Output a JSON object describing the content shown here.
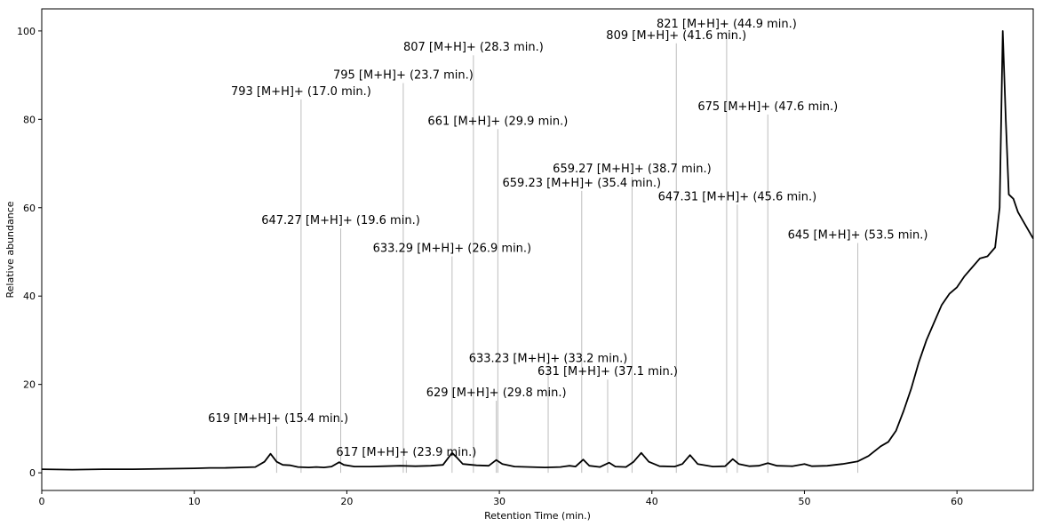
{
  "chart_data": {
    "type": "line",
    "title": "",
    "xlabel": "Retention Time (min.)",
    "ylabel": "Relative abundance",
    "xlim": [
      0,
      65
    ],
    "ylim": [
      -4,
      105
    ],
    "grid": false,
    "x_ticks": [
      0,
      10,
      20,
      30,
      40,
      50,
      60
    ],
    "y_ticks": [
      0,
      20,
      40,
      60,
      80,
      100
    ],
    "series": [
      {
        "color": "#000000",
        "points": [
          [
            0,
            0.8
          ],
          [
            2,
            0.7
          ],
          [
            4,
            0.8
          ],
          [
            6,
            0.8
          ],
          [
            8,
            0.9
          ],
          [
            10,
            1.0
          ],
          [
            11,
            1.1
          ],
          [
            12,
            1.1
          ],
          [
            13,
            1.2
          ],
          [
            14,
            1.3
          ],
          [
            14.6,
            2.5
          ],
          [
            15.0,
            4.3
          ],
          [
            15.4,
            2.5
          ],
          [
            15.8,
            1.8
          ],
          [
            16.3,
            1.7
          ],
          [
            16.8,
            1.3
          ],
          [
            17.5,
            1.2
          ],
          [
            18.0,
            1.3
          ],
          [
            18.5,
            1.2
          ],
          [
            19.0,
            1.4
          ],
          [
            19.5,
            2.4
          ],
          [
            19.8,
            1.8
          ],
          [
            20.5,
            1.4
          ],
          [
            21.5,
            1.4
          ],
          [
            22.5,
            1.5
          ],
          [
            23.5,
            1.6
          ],
          [
            24.5,
            1.5
          ],
          [
            25.5,
            1.6
          ],
          [
            26.3,
            1.8
          ],
          [
            26.9,
            4.5
          ],
          [
            27.2,
            3.5
          ],
          [
            27.6,
            2.0
          ],
          [
            28.5,
            1.7
          ],
          [
            29.3,
            1.6
          ],
          [
            29.8,
            2.9
          ],
          [
            30.2,
            2.0
          ],
          [
            31.0,
            1.4
          ],
          [
            32.0,
            1.3
          ],
          [
            33.0,
            1.2
          ],
          [
            34.0,
            1.3
          ],
          [
            34.6,
            1.6
          ],
          [
            35.0,
            1.4
          ],
          [
            35.5,
            3.0
          ],
          [
            35.9,
            1.6
          ],
          [
            36.6,
            1.3
          ],
          [
            37.2,
            2.3
          ],
          [
            37.6,
            1.4
          ],
          [
            38.3,
            1.3
          ],
          [
            38.8,
            2.5
          ],
          [
            39.3,
            4.5
          ],
          [
            39.8,
            2.5
          ],
          [
            40.5,
            1.5
          ],
          [
            41.5,
            1.4
          ],
          [
            42.0,
            2.0
          ],
          [
            42.5,
            4.0
          ],
          [
            43.0,
            2.0
          ],
          [
            44.0,
            1.4
          ],
          [
            44.8,
            1.5
          ],
          [
            45.3,
            3.1
          ],
          [
            45.7,
            2.0
          ],
          [
            46.4,
            1.5
          ],
          [
            47.0,
            1.6
          ],
          [
            47.6,
            2.2
          ],
          [
            48.2,
            1.6
          ],
          [
            49.2,
            1.5
          ],
          [
            50.0,
            2.0
          ],
          [
            50.5,
            1.5
          ],
          [
            51.5,
            1.6
          ],
          [
            52.5,
            2.0
          ],
          [
            53.5,
            2.6
          ],
          [
            54.2,
            3.8
          ],
          [
            55.0,
            6.0
          ],
          [
            55.5,
            7.0
          ],
          [
            56.0,
            9.5
          ],
          [
            56.5,
            14.0
          ],
          [
            57.0,
            19.0
          ],
          [
            57.5,
            25.0
          ],
          [
            58.0,
            30.0
          ],
          [
            58.5,
            34.0
          ],
          [
            59.0,
            38.0
          ],
          [
            59.5,
            40.5
          ],
          [
            60.0,
            42.0
          ],
          [
            60.5,
            44.5
          ],
          [
            61.0,
            46.5
          ],
          [
            61.5,
            48.5
          ],
          [
            62.0,
            49.0
          ],
          [
            62.5,
            51.0
          ],
          [
            62.8,
            60.0
          ],
          [
            63.0,
            100.0
          ],
          [
            63.2,
            80.0
          ],
          [
            63.4,
            63.0
          ],
          [
            63.7,
            62.0
          ],
          [
            64.0,
            59.0
          ],
          [
            64.5,
            56.0
          ],
          [
            65.0,
            53.0
          ]
        ]
      }
    ],
    "peak_markers": [
      {
        "x": 15.4,
        "y": 10.5,
        "label": "619 [M+H]+ (15.4 min.)",
        "label_x": 15.5,
        "label_y": 11.5
      },
      {
        "x": 17.0,
        "y": 84.5,
        "label": "793 [M+H]+ (17.0 min.)",
        "label_x": 17.0,
        "label_y": 85.5
      },
      {
        "x": 19.6,
        "y": 55.3,
        "label": "647.27 [M+H]+ (19.6 min.)",
        "label_x": 19.6,
        "label_y": 56.3
      },
      {
        "x": 23.7,
        "y": 88.2,
        "label": "795 [M+H]+ (23.7 min.)",
        "label_x": 23.7,
        "label_y": 89.2
      },
      {
        "x": 23.9,
        "y": 2.8,
        "label": "617 [M+H]+ (23.9 min.)",
        "label_x": 23.9,
        "label_y": 3.8
      },
      {
        "x": 26.9,
        "y": 49.0,
        "label": "633.29 [M+H]+ (26.9 min.)",
        "label_x": 26.9,
        "label_y": 50.0
      },
      {
        "x": 28.3,
        "y": 94.5,
        "label": "807 [M+H]+ (28.3 min.)",
        "label_x": 28.3,
        "label_y": 95.5
      },
      {
        "x": 29.8,
        "y": 16.3,
        "label": "629 [M+H]+ (29.8 min.)",
        "label_x": 29.8,
        "label_y": 17.3
      },
      {
        "x": 29.9,
        "y": 77.8,
        "label": "661 [M+H]+ (29.9 min.)",
        "label_x": 29.9,
        "label_y": 78.8
      },
      {
        "x": 33.2,
        "y": 24.1,
        "label": "633.23 [M+H]+ (33.2 min.)",
        "label_x": 33.2,
        "label_y": 25.1
      },
      {
        "x": 35.4,
        "y": 63.8,
        "label": "659.23 [M+H]+ (35.4 min.)",
        "label_x": 35.4,
        "label_y": 64.8
      },
      {
        "x": 37.1,
        "y": 21.1,
        "label": "631 [M+H]+ (37.1 min.)",
        "label_x": 37.1,
        "label_y": 22.1
      },
      {
        "x": 38.7,
        "y": 67.0,
        "label": "659.27 [M+H]+ (38.7 min.)",
        "label_x": 38.7,
        "label_y": 68.0
      },
      {
        "x": 41.6,
        "y": 97.2,
        "label": "809 [M+H]+ (41.6 min.)",
        "label_x": 41.6,
        "label_y": 98.2
      },
      {
        "x": 44.9,
        "y": 99.8,
        "label": "821 [M+H]+ (44.9 min.)",
        "label_x": 44.9,
        "label_y": 100.8
      },
      {
        "x": 45.6,
        "y": 60.7,
        "label": "647.31 [M+H]+ (45.6 min.)",
        "label_x": 45.6,
        "label_y": 61.7
      },
      {
        "x": 47.6,
        "y": 81.1,
        "label": "675 [M+H]+ (47.6 min.)",
        "label_x": 47.6,
        "label_y": 82.1
      },
      {
        "x": 53.5,
        "y": 52.0,
        "label": "645 [M+H]+ (53.5 min.)",
        "label_x": 53.5,
        "label_y": 53.0
      }
    ]
  }
}
